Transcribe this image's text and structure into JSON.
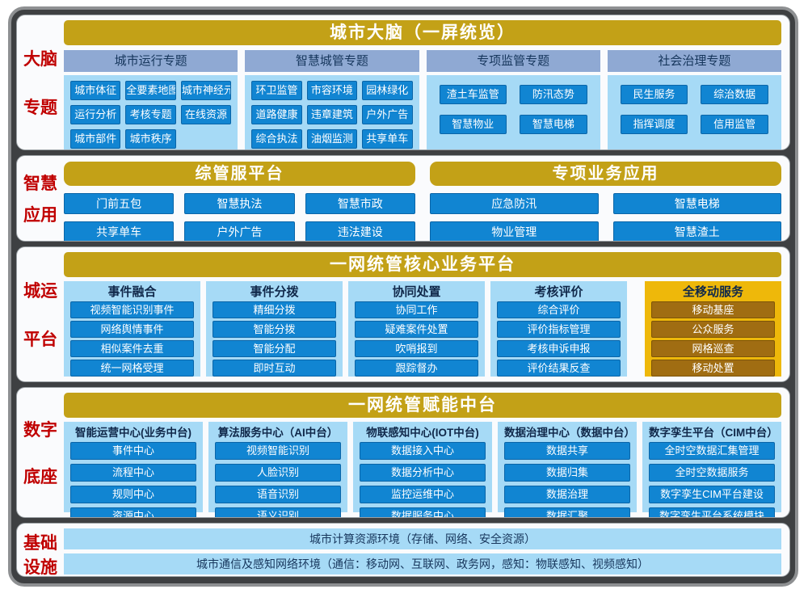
{
  "colors": {
    "gold_header": "#c3a117",
    "blue_button": "#1185d2",
    "panel_blue": "#a6daf6",
    "subheader_periwinkle": "#8fa9d3",
    "side_label_red": "#c00000",
    "gold_panel": "#eeb80a",
    "brown_button": "#a06d12",
    "navy_text": "#16365c"
  },
  "sections": [
    {
      "label_lines": [
        "大脑",
        "专题"
      ],
      "header": "城市大脑（一屏统览）",
      "groups": [
        {
          "title": "城市运行专题",
          "items": [
            "城市体征",
            "全要素地图",
            "城市神经元",
            "运行分析",
            "考核专题",
            "在线资源",
            "城市部件",
            "城市秩序"
          ]
        },
        {
          "title": "智慧城管专题",
          "items": [
            "环卫监管",
            "市容环境",
            "园林绿化",
            "道路健康",
            "违章建筑",
            "户外广告",
            "综合执法",
            "油烟监测",
            "共享单车"
          ]
        },
        {
          "title": "专项监管专题",
          "items": [
            "渣土车监管",
            "防汛态势",
            "智慧物业",
            "智慧电梯"
          ]
        },
        {
          "title": "社会治理专题",
          "items": [
            "民生服务",
            "综治数据",
            "指挥调度",
            "信用监管"
          ]
        }
      ]
    },
    {
      "label_lines": [
        "智慧",
        "应用"
      ],
      "platforms": [
        {
          "title": "综管服平台",
          "items": [
            "门前五包",
            "智慧执法",
            "智慧市政",
            "共享单车",
            "户外广告",
            "违法建设"
          ]
        },
        {
          "title": "专项业务应用",
          "items": [
            "应急防汛",
            "智慧电梯",
            "物业管理",
            "智慧渣土"
          ]
        }
      ]
    },
    {
      "label_lines": [
        "城运",
        "平台"
      ],
      "header": "一网统管核心业务平台",
      "more": "......",
      "columns": [
        {
          "title": "事件融合",
          "items": [
            "视频智能识别事件",
            "网络舆情事件",
            "相似案件去重",
            "统一网格受理"
          ]
        },
        {
          "title": "事件分拨",
          "items": [
            "精细分拨",
            "智能分拨",
            "智能分配",
            "即时互动"
          ]
        },
        {
          "title": "协同处置",
          "items": [
            "协同工作",
            "疑难案件处置",
            "吹哨报到",
            "跟踪督办"
          ]
        },
        {
          "title": "考核评价",
          "items": [
            "综合评价",
            "评价指标管理",
            "考核申诉申报",
            "评价结果反查"
          ]
        },
        {
          "title": "全移动服务",
          "items": [
            "移动基座",
            "公众服务",
            "网格巡查",
            "移动处置"
          ]
        }
      ]
    },
    {
      "label_lines": [
        "数字",
        "底座"
      ],
      "header": "一网统管赋能中台",
      "columns": [
        {
          "title": "智能运营中心(业务中台)",
          "items": [
            "事件中心",
            "流程中心",
            "规则中心",
            "资源中心"
          ]
        },
        {
          "title": "算法服务中心（AI中台）",
          "items": [
            "视频智能识别",
            "人脸识别",
            "语音识别",
            "语义识别"
          ]
        },
        {
          "title": "物联感知中心(IOT中台)",
          "items": [
            "数据接入中心",
            "数据分析中心",
            "监控运维中心",
            "数据服务中心"
          ]
        },
        {
          "title": "数据治理中心（数据中台）",
          "items": [
            "数据共享",
            "数据归集",
            "数据治理",
            "数据汇聚"
          ]
        },
        {
          "title": "数字孪生平台（CIM中台）",
          "items": [
            "全时空数据汇集管理",
            "全时空数据服务",
            "数字孪生CIM平台建设",
            "数字孪生平台系统模块"
          ]
        }
      ]
    },
    {
      "label_lines": [
        "基础",
        "设施"
      ],
      "rows": [
        "城市计算资源环境（存储、网络、安全资源）",
        "城市通信及感知网络环境（通信：移动网、互联网、政务网，感知：物联感知、视频感知）"
      ]
    }
  ]
}
